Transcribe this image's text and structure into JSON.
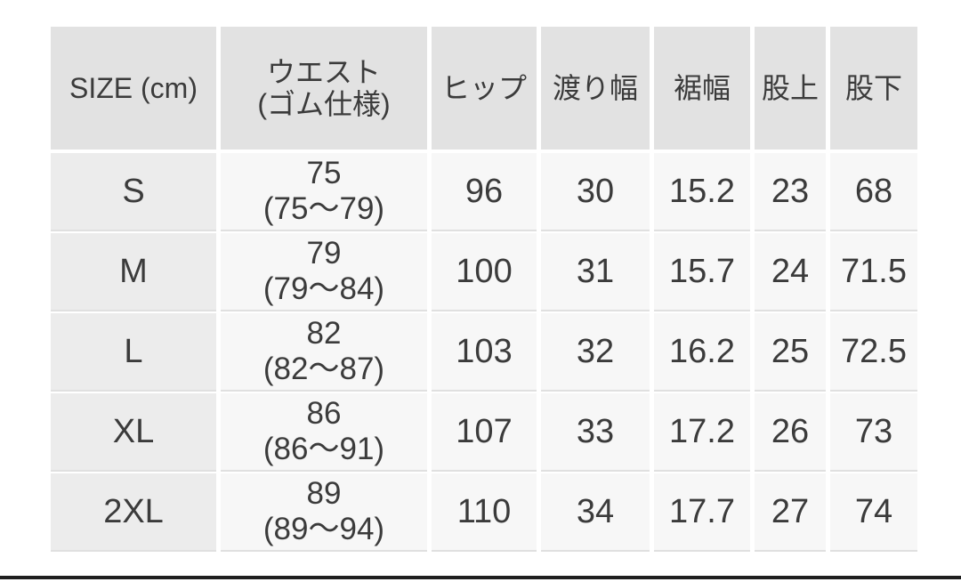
{
  "theme": {
    "page_background": "#ffffff",
    "header_cell_background": "#e2e2e2",
    "row_label_background": "#ececec",
    "data_cell_background": "#f7f7f7",
    "row_separator_color": "#e0e0e0",
    "text_color": "#3b3b3b",
    "bottom_rule_color": "#1e1e1e"
  },
  "chart_data": {
    "type": "table",
    "columns": [
      "SIZE (cm)",
      "ウエスト\n(ゴム仕様)",
      "ヒップ",
      "渡り幅",
      "裾幅",
      "股上",
      "股下"
    ],
    "rows": [
      [
        "S",
        "75\n(75〜79)",
        "96",
        "30",
        "15.2",
        "23",
        "68"
      ],
      [
        "M",
        "79\n(79〜84)",
        "100",
        "31",
        "15.7",
        "24",
        "71.5"
      ],
      [
        "L",
        "82\n(82〜87)",
        "103",
        "32",
        "16.2",
        "25",
        "72.5"
      ],
      [
        "XL",
        "86\n(86〜91)",
        "107",
        "33",
        "17.2",
        "26",
        "73"
      ],
      [
        "2XL",
        "89\n(89〜94)",
        "110",
        "34",
        "17.7",
        "27",
        "74"
      ]
    ]
  }
}
